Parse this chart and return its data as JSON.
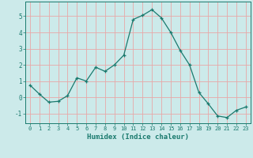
{
  "x": [
    0,
    1,
    2,
    3,
    4,
    5,
    6,
    7,
    8,
    9,
    10,
    11,
    12,
    13,
    14,
    15,
    16,
    17,
    18,
    19,
    20,
    21,
    22,
    23
  ],
  "y": [
    0.75,
    0.2,
    -0.3,
    -0.25,
    0.1,
    1.2,
    1.0,
    1.85,
    1.6,
    2.0,
    2.6,
    4.8,
    5.05,
    5.4,
    4.9,
    4.0,
    2.9,
    2.0,
    0.3,
    -0.4,
    -1.15,
    -1.25,
    -0.8,
    -0.6
  ],
  "xlabel": "Humidex (Indice chaleur)",
  "xlim": [
    -0.5,
    23.5
  ],
  "ylim": [
    -1.6,
    5.9
  ],
  "yticks": [
    -1,
    0,
    1,
    2,
    3,
    4,
    5
  ],
  "xticks": [
    0,
    1,
    2,
    3,
    4,
    5,
    6,
    7,
    8,
    9,
    10,
    11,
    12,
    13,
    14,
    15,
    16,
    17,
    18,
    19,
    20,
    21,
    22,
    23
  ],
  "line_color": "#1a7a6e",
  "marker": "+",
  "bg_color": "#cceaea",
  "grid_color": "#e8a8a8",
  "axes_color": "#1a7a6e",
  "tick_label_color": "#1a7a6e",
  "xlabel_color": "#1a7a6e",
  "tick_fontsize": 5.0,
  "xlabel_fontsize": 6.5
}
